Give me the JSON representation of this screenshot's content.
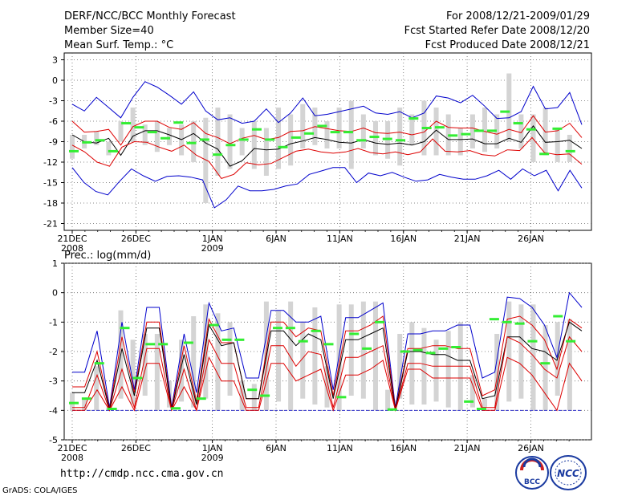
{
  "header": {
    "title": "DERF/NCC/BCC Monthly Forecast",
    "member_size": "Member Size=40",
    "variable": "Mean Surf. Temp.: °C",
    "for_period": "For 2008/12/21-2009/01/29",
    "fcst_started": "Fcst Started Refer Date 2008/12/20",
    "fcst_produced": "Fcst Produced Date 2008/12/21"
  },
  "footer": {
    "url": "http://cmdp.ncc.cma.gov.cn",
    "grads": "GrADS: COLA/IGES",
    "logo_bcc": "BCC",
    "logo_ncc": "NCC"
  },
  "colors": {
    "mean_line": "#000000",
    "spread_line": "#dd0000",
    "envelope_line": "#0000cc",
    "box": "#d4d4d4",
    "marker": "#33ee33",
    "grid": "#666666"
  },
  "chart_data": [
    {
      "type": "line",
      "title": "Mean Surf. Temp.: °C",
      "ylim": [
        -22,
        4
      ],
      "yticks": [
        3,
        0,
        -3,
        -6,
        -9,
        -12,
        -15,
        -18,
        -21
      ],
      "ytick_labels": [
        "3",
        "0",
        "-3",
        "-6",
        "-9",
        "-12",
        "-15",
        "-18",
        "-21"
      ],
      "xticks": [
        {
          "day": 1,
          "label": "21DEC",
          "sub": "2008"
        },
        {
          "day": 6,
          "label": "26DEC",
          "sub": ""
        },
        {
          "day": 12,
          "label": "1JAN",
          "sub": "2009"
        },
        {
          "day": 17,
          "label": "6JAN",
          "sub": ""
        },
        {
          "day": 22,
          "label": "11JAN",
          "sub": ""
        },
        {
          "day": 27,
          "label": "16JAN",
          "sub": ""
        },
        {
          "day": 32,
          "label": "21JAN",
          "sub": ""
        },
        {
          "day": 37,
          "label": "26JAN",
          "sub": ""
        }
      ],
      "days": 40,
      "series": [
        {
          "name": "max",
          "color": "#0000cc",
          "values": [
            -3.5,
            -4.5,
            -2.5,
            -4,
            -5.5,
            -2.5,
            -0.2,
            -1,
            -2.2,
            -3.5,
            -1.7,
            -4.5,
            -5.8,
            -5.5,
            -6.3,
            -6,
            -4.2,
            -6.2,
            -4.8,
            -2.6,
            -5.2,
            -5,
            -4.6,
            -4.2,
            -3.8,
            -4.8,
            -5,
            -4.6,
            -5.5,
            -4.8,
            -2.3,
            -2.6,
            -3.3,
            -2.2,
            -3.8,
            -5.6,
            -5.5,
            -4.6,
            -0.9,
            -4.2,
            -4,
            -1.8,
            -6.5
          ]
        },
        {
          "name": "upper",
          "color": "#dd0000",
          "values": [
            -6,
            -7.6,
            -7.5,
            -7.2,
            -9.5,
            -6.8,
            -6,
            -6,
            -6.9,
            -7.2,
            -6.2,
            -7.8,
            -8.4,
            -9.3,
            -8.5,
            -8.1,
            -8.7,
            -8.4,
            -7.5,
            -7.4,
            -6.8,
            -7.1,
            -7.4,
            -7.5,
            -7,
            -7.7,
            -7.8,
            -7.6,
            -8,
            -7.6,
            -6,
            -6.9,
            -7,
            -7,
            -7.5,
            -7.9,
            -7.2,
            -7.7,
            -5.2,
            -7.6,
            -7.4,
            -6.3,
            -8.4
          ]
        },
        {
          "name": "mean",
          "color": "#000000",
          "values": [
            -8,
            -9,
            -9.2,
            -8.5,
            -11,
            -8.2,
            -7.4,
            -7.4,
            -8,
            -8.7,
            -7.8,
            -9.2,
            -10.1,
            -12.6,
            -11.8,
            -10,
            -10.2,
            -10.1,
            -9.3,
            -8.9,
            -8.4,
            -8.7,
            -9.1,
            -9.2,
            -8.7,
            -9.2,
            -9.4,
            -9.2,
            -9.5,
            -9,
            -7.3,
            -8.7,
            -8.7,
            -8.6,
            -9.3,
            -9.3,
            -8.5,
            -9.1,
            -6.7,
            -9.1,
            -9,
            -8.8,
            -10
          ]
        },
        {
          "name": "lower",
          "color": "#dd0000",
          "values": [
            -9.5,
            -10.5,
            -12,
            -12.6,
            -9.8,
            -9,
            -9.1,
            -9.8,
            -10.4,
            -9.5,
            -11,
            -11.9,
            -14.4,
            -13.8,
            -12.1,
            -12.4,
            -12.2,
            -11.3,
            -10.4,
            -10.1,
            -10.5,
            -10.7,
            -10.5,
            -10,
            -10.6,
            -10.8,
            -10.5,
            -10.9,
            -10.5,
            -8.6,
            -10.4,
            -10.5,
            -10.3,
            -10.9,
            -11.1,
            -10.2,
            -10.3,
            -8.4,
            -10.6,
            -10.9,
            -10.8,
            -12.3
          ]
        },
        {
          "name": "min",
          "color": "#0000cc",
          "values": [
            -12.8,
            -15,
            -16.3,
            -16.8,
            -14.8,
            -13,
            -14,
            -14.8,
            -14.1,
            -14,
            -14.2,
            -14.6,
            -18.7,
            -17.5,
            -15.5,
            -16.2,
            -16.2,
            -16,
            -15.5,
            -15.2,
            -13.8,
            -13.3,
            -12.8,
            -12.8,
            -15,
            -13.6,
            -14,
            -13.5,
            -14.2,
            -14.8,
            -14.6,
            -13.8,
            -14.2,
            -14.5,
            -14.5,
            -14,
            -13.2,
            -14.5,
            -13,
            -14,
            -13.2,
            -16.2,
            -13.2,
            -15.8
          ]
        }
      ],
      "boxes": [
        [
          -11.5,
          -8
        ],
        [
          -10,
          -8
        ],
        [
          -9.5,
          -7.5
        ],
        [
          -11,
          -9
        ],
        [
          -9,
          -6
        ],
        [
          -9,
          -4
        ],
        [
          -9.5,
          -6.5
        ],
        [
          -10.5,
          -6
        ],
        [
          -9.5,
          -7
        ],
        [
          -11,
          -6.5
        ],
        [
          -12,
          -6
        ],
        [
          -18,
          -5.5
        ],
        [
          -14,
          -4
        ],
        [
          -13,
          -5
        ],
        [
          -11,
          -7
        ],
        [
          -13,
          -6
        ],
        [
          -14,
          -7
        ],
        [
          -13,
          -4
        ],
        [
          -12.5,
          -5
        ],
        [
          -10,
          -3.5
        ],
        [
          -9.5,
          -4
        ],
        [
          -10,
          -6
        ],
        [
          -10,
          -4
        ],
        [
          -13,
          -3
        ],
        [
          -10,
          -5
        ],
        [
          -11,
          -6
        ],
        [
          -11.5,
          -6
        ],
        [
          -12.5,
          -4
        ],
        [
          -9.5,
          -5
        ],
        [
          -11,
          -3
        ],
        [
          -11,
          -4
        ],
        [
          -11,
          -5
        ],
        [
          -11,
          -7
        ],
        [
          -10,
          -5
        ],
        [
          -10.5,
          -4
        ],
        [
          -10,
          -5
        ],
        [
          -9,
          1
        ],
        [
          -10,
          -5
        ],
        [
          -12,
          -5
        ],
        [
          -11,
          -4
        ],
        [
          -12,
          -7
        ],
        [
          -12,
          -8
        ]
      ],
      "markers": [
        -10.4,
        -9.1,
        -8.8,
        -10.4,
        -6.3,
        -6.9,
        -7.6,
        -8.5,
        -6.2,
        -9.2,
        -8.7,
        -10.9,
        -9.5,
        -8.7,
        -7.2,
        -8.7,
        -9.8,
        -8.4,
        -7.8,
        -6.7,
        -7.6,
        -7.6,
        -8.8,
        -8.3,
        -8.6,
        -8.8,
        -5.6,
        -7,
        -6.9,
        -8.1,
        -7.9,
        -7.4,
        -7.4,
        -4.6,
        -6.3,
        -7.2,
        -10.8,
        -7.1,
        -10.4
      ]
    },
    {
      "type": "line",
      "title": "Prec.: log(mm/d)",
      "ylim": [
        -5,
        1
      ],
      "yticks": [
        1,
        0,
        -1,
        -2,
        -3,
        -4,
        -5
      ],
      "ytick_labels": [
        "1",
        "0",
        "-1",
        "-2",
        "-3",
        "-4",
        "-5"
      ],
      "xticks": [
        {
          "day": 1,
          "label": "21DEC",
          "sub": "2008"
        },
        {
          "day": 6,
          "label": "26DEC",
          "sub": ""
        },
        {
          "day": 12,
          "label": "1JAN",
          "sub": "2009"
        },
        {
          "day": 17,
          "label": "6JAN",
          "sub": ""
        },
        {
          "day": 22,
          "label": "11JAN",
          "sub": ""
        },
        {
          "day": 27,
          "label": "16JAN",
          "sub": ""
        },
        {
          "day": 32,
          "label": "21JAN",
          "sub": ""
        },
        {
          "day": 37,
          "label": "26JAN",
          "sub": ""
        }
      ],
      "days": 40,
      "series": [
        {
          "name": "max",
          "color": "#0000cc",
          "values": [
            -2.7,
            -2.7,
            -1.3,
            -3.9,
            -1,
            -3.3,
            -0.5,
            -0.5,
            -3.9,
            -1.4,
            -3.4,
            -0.35,
            -1.3,
            -1.2,
            -2.9,
            -2.9,
            -0.6,
            -0.6,
            -1,
            -1,
            -0.8,
            -3.3,
            -0.85,
            -0.85,
            -0.6,
            -0.35,
            -3.9,
            -1.4,
            -1.4,
            -1.3,
            -1.3,
            -1.1,
            -1.1,
            -2.9,
            -2.7,
            -0.15,
            -0.2,
            -0.5,
            -1.1,
            -2.2,
            0,
            -0.5
          ]
        },
        {
          "name": "upper",
          "color": "#dd0000",
          "values": [
            -3.2,
            -3.2,
            -2,
            -3.95,
            -1.5,
            -3.4,
            -1,
            -1,
            -3.95,
            -1.8,
            -3.7,
            -0.9,
            -1.7,
            -1.7,
            -3.6,
            -3.6,
            -1,
            -1,
            -1.5,
            -1.2,
            -1.3,
            -3.5,
            -1.3,
            -1.3,
            -1.1,
            -0.8,
            -3.95,
            -1.9,
            -1.9,
            -1.8,
            -1.8,
            -1.9,
            -1.9,
            -3.5,
            -3.3,
            -0.9,
            -0.8,
            -1.1,
            -1.6,
            -2.6,
            -0.9,
            -1.2
          ]
        },
        {
          "name": "mean",
          "color": "#000000",
          "values": [
            -3.4,
            -3.4,
            -2.3,
            -3.98,
            -1.9,
            -3.5,
            -1.2,
            -1.2,
            -3.98,
            -2.1,
            -3.8,
            -1.1,
            -1.8,
            -1.7,
            -3.6,
            -3.6,
            -1.3,
            -1.3,
            -1.8,
            -1.4,
            -1.6,
            -3.6,
            -1.6,
            -1.6,
            -1.4,
            -1.2,
            -3.98,
            -2,
            -2,
            -2.1,
            -2.1,
            -2.3,
            -2.3,
            -3.6,
            -3.5,
            -1.5,
            -1.5,
            -1.9,
            -2,
            -2.3,
            -1,
            -1.3
          ]
        },
        {
          "name": "lower",
          "color": "#dd0000",
          "values": [
            -3.9,
            -3.9,
            -2.8,
            -4,
            -2.6,
            -3.9,
            -1.9,
            -1.9,
            -4,
            -2.6,
            -4,
            -1.6,
            -2.4,
            -2.4,
            -3.9,
            -3.9,
            -1.8,
            -1.8,
            -2.5,
            -2,
            -2.1,
            -3.9,
            -2.2,
            -2.2,
            -2,
            -1.8,
            -4,
            -2.4,
            -2.4,
            -2.5,
            -2.5,
            -2.5,
            -2.5,
            -3.9,
            -3.9,
            -1.5,
            -1.7,
            -2.1,
            -2.6,
            -2.9,
            -1.5,
            -2
          ]
        },
        {
          "name": "min",
          "color": "#dd0000",
          "values": [
            -4,
            -4,
            -3.3,
            -4,
            -3.2,
            -4,
            -2.4,
            -2.4,
            -4,
            -3.2,
            -4,
            -2.2,
            -3,
            -3,
            -4,
            -4,
            -2.4,
            -2.4,
            -3,
            -2.8,
            -2.6,
            -4,
            -2.8,
            -2.8,
            -2.6,
            -2.3,
            -4,
            -2.6,
            -2.6,
            -2.9,
            -2.9,
            -2.9,
            -2.9,
            -4,
            -4,
            -2.2,
            -2.4,
            -2.8,
            -3.4,
            -4,
            -2.4,
            -3
          ]
        }
      ],
      "floor": -4,
      "boxes": [
        [
          -4,
          -3.4
        ],
        [
          -4,
          -3.6
        ],
        [
          -4,
          -2.5
        ],
        [
          -4,
          -3.9
        ],
        [
          -3.6,
          -0.6
        ],
        [
          -3.8,
          -1.6
        ],
        [
          -3.5,
          -1.4
        ],
        [
          -4,
          -1.4
        ],
        [
          -3.9,
          -3
        ],
        [
          -3.7,
          -1.6
        ],
        [
          -3.9,
          -0.8
        ],
        [
          -3.6,
          -0.4
        ],
        [
          -4,
          -0.7
        ],
        [
          -3.5,
          -1
        ],
        [
          -4,
          -3
        ],
        [
          -4,
          -3.1
        ],
        [
          -4,
          -0.3
        ],
        [
          -3.7,
          -0.6
        ],
        [
          -4,
          -0.3
        ],
        [
          -3.6,
          -1
        ],
        [
          -3.8,
          -0.5
        ],
        [
          -3.9,
          -2.5
        ],
        [
          -4,
          -0.4
        ],
        [
          -3.5,
          -0.4
        ],
        [
          -3.6,
          -0.3
        ],
        [
          -4,
          -0.3
        ],
        [
          -4,
          -3.3
        ],
        [
          -3.6,
          -1.4
        ],
        [
          -3.8,
          -1
        ],
        [
          -3.8,
          -1.2
        ],
        [
          -3.7,
          -1.6
        ],
        [
          -3.9,
          -1.3
        ],
        [
          -4,
          -1
        ],
        [
          -3.9,
          -2.8
        ],
        [
          -3.9,
          -3.6
        ],
        [
          -4,
          -1.4
        ],
        [
          -3.7,
          -0.3
        ],
        [
          -3.6,
          -0.4
        ],
        [
          -4,
          -0.4
        ],
        [
          -4,
          -1.1
        ],
        [
          -3.5,
          -1
        ],
        [
          -4,
          -0.9
        ]
      ],
      "markers": [
        -3.75,
        -3.6,
        -2.4,
        -3.95,
        -1.2,
        -2.9,
        -1.75,
        -1.75,
        -3.93,
        -1.7,
        -3.6,
        -1.1,
        -1.6,
        -1.6,
        -3.3,
        -3.5,
        -1.2,
        -1.2,
        -1.65,
        -1.3,
        -1.75,
        -3.55,
        -1.4,
        -1.9,
        -1,
        -3.97,
        -2,
        -1.95,
        -2.05,
        -1.9,
        -1.85,
        -3.7,
        -3.95,
        -0.9,
        -1,
        -1.05,
        -1.65,
        -2.4,
        -0.8,
        -1.65
      ]
    }
  ]
}
